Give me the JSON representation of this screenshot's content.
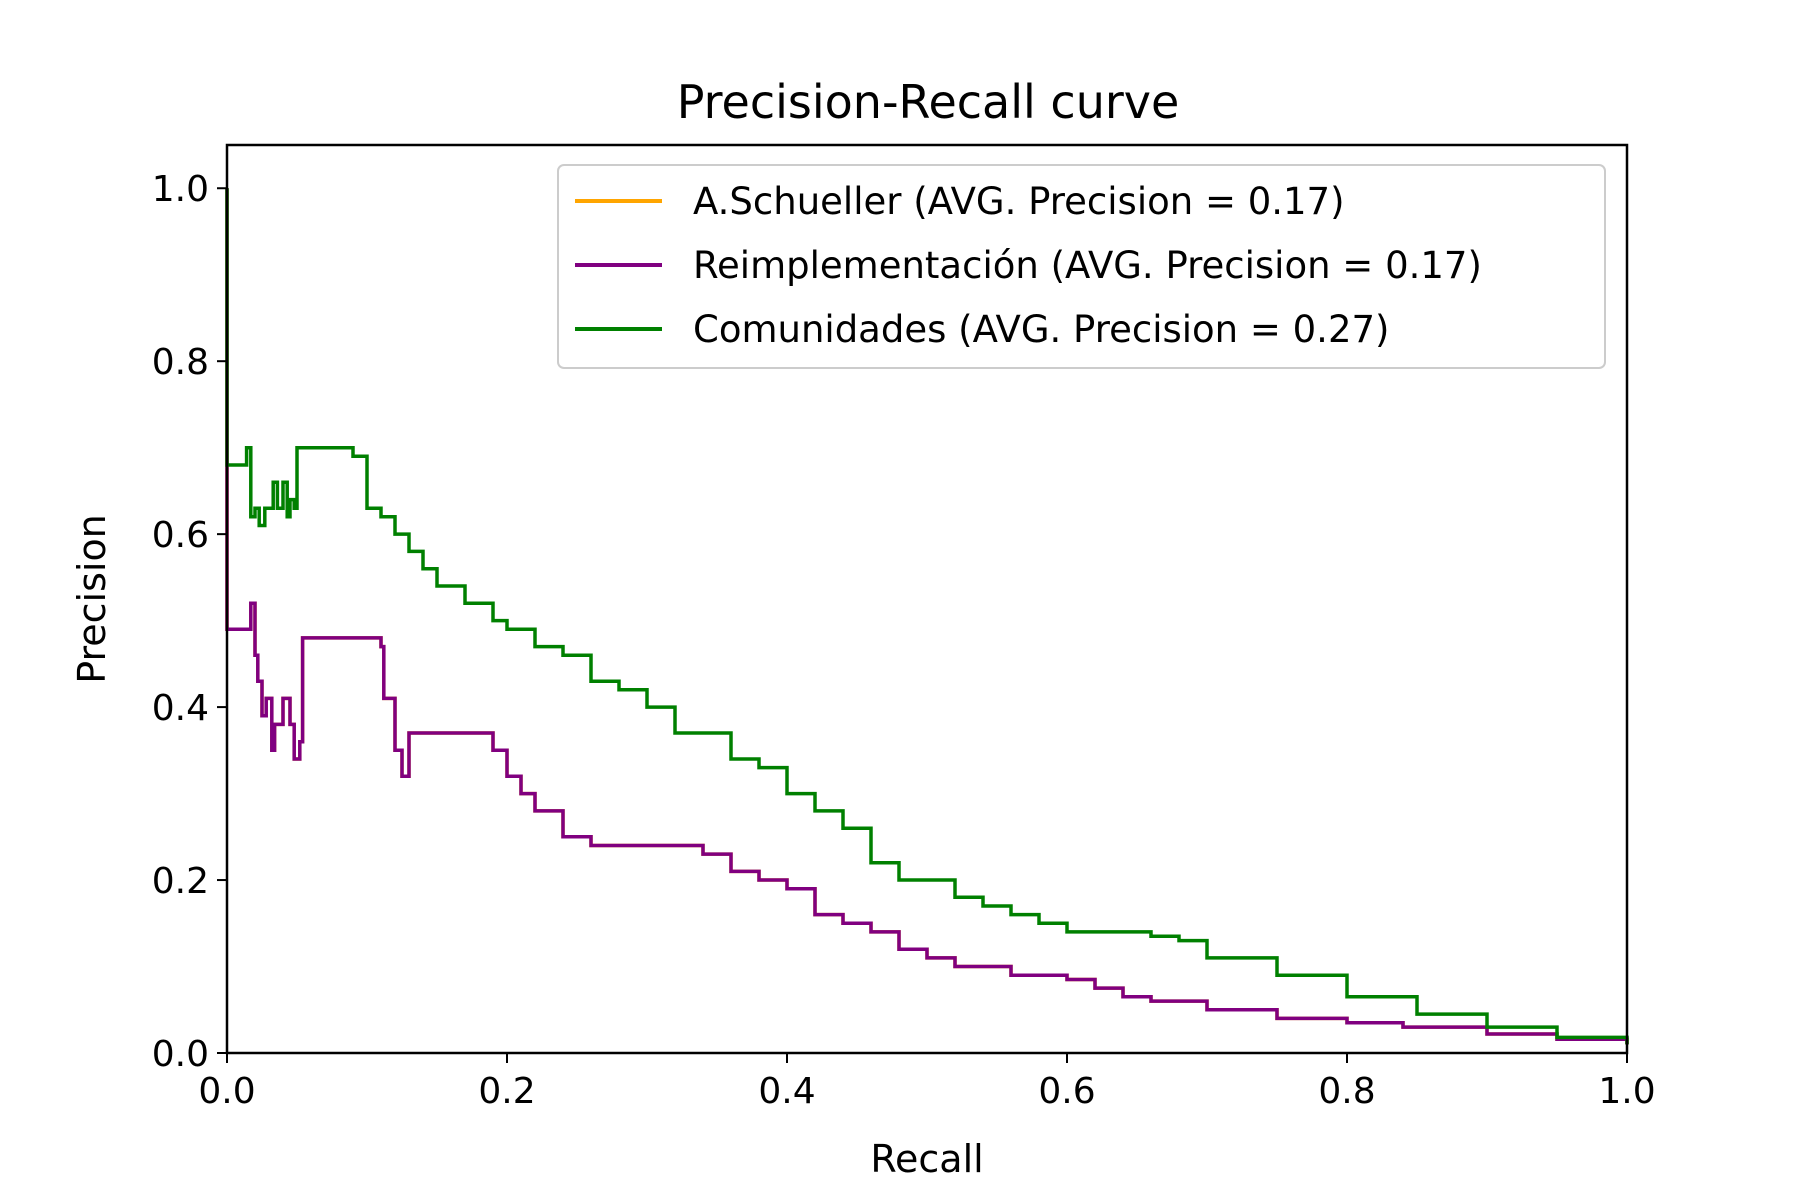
{
  "chart_data": {
    "type": "line",
    "title": "Precision-Recall curve",
    "xlabel": "Recall",
    "ylabel": "Precision",
    "xlim": [
      0.0,
      1.0
    ],
    "ylim": [
      0.0,
      1.05
    ],
    "xticks": [
      "0.0",
      "0.2",
      "0.4",
      "0.6",
      "0.8",
      "1.0"
    ],
    "yticks": [
      "0.0",
      "0.2",
      "0.4",
      "0.6",
      "0.8",
      "1.0"
    ],
    "grid": false,
    "legend_position": "top-right",
    "series": [
      {
        "name": "A.Schueller (AVG. Precision = 0.17)",
        "color": "#ffa500",
        "x": [
          0.0,
          0.0,
          0.005,
          0.01,
          0.015,
          0.017,
          0.02,
          0.022,
          0.025,
          0.028,
          0.032,
          0.034,
          0.037,
          0.04,
          0.045,
          0.048,
          0.052,
          0.054,
          0.056,
          0.1,
          0.11,
          0.112,
          0.12,
          0.125,
          0.13,
          0.14,
          0.17,
          0.18,
          0.19,
          0.2,
          0.21,
          0.22,
          0.24,
          0.26,
          0.28,
          0.3,
          0.32,
          0.34,
          0.36,
          0.38,
          0.4,
          0.42,
          0.44,
          0.46,
          0.48,
          0.5,
          0.52,
          0.56,
          0.58,
          0.6,
          0.62,
          0.64,
          0.66,
          0.7,
          0.75,
          0.8,
          0.84,
          0.9,
          0.95,
          1.0
        ],
        "y": [
          1.0,
          0.49,
          0.49,
          0.49,
          0.49,
          0.52,
          0.46,
          0.43,
          0.39,
          0.41,
          0.35,
          0.38,
          0.38,
          0.41,
          0.38,
          0.34,
          0.36,
          0.48,
          0.48,
          0.48,
          0.47,
          0.41,
          0.35,
          0.32,
          0.37,
          0.37,
          0.37,
          0.37,
          0.35,
          0.32,
          0.3,
          0.28,
          0.25,
          0.24,
          0.24,
          0.24,
          0.24,
          0.23,
          0.21,
          0.2,
          0.19,
          0.16,
          0.15,
          0.14,
          0.12,
          0.11,
          0.1,
          0.09,
          0.09,
          0.085,
          0.075,
          0.065,
          0.06,
          0.05,
          0.04,
          0.035,
          0.03,
          0.022,
          0.016,
          0.01
        ]
      },
      {
        "name": "Reimplementación (AVG. Precision = 0.17)",
        "color": "#800080",
        "x": [
          0.0,
          0.0,
          0.005,
          0.01,
          0.015,
          0.017,
          0.02,
          0.022,
          0.025,
          0.028,
          0.032,
          0.034,
          0.037,
          0.04,
          0.045,
          0.048,
          0.052,
          0.054,
          0.056,
          0.1,
          0.11,
          0.112,
          0.12,
          0.125,
          0.13,
          0.14,
          0.17,
          0.18,
          0.19,
          0.2,
          0.21,
          0.22,
          0.24,
          0.26,
          0.28,
          0.3,
          0.32,
          0.34,
          0.36,
          0.38,
          0.4,
          0.42,
          0.44,
          0.46,
          0.48,
          0.5,
          0.52,
          0.56,
          0.58,
          0.6,
          0.62,
          0.64,
          0.66,
          0.7,
          0.75,
          0.8,
          0.84,
          0.9,
          0.95,
          1.0
        ],
        "y": [
          1.0,
          0.49,
          0.49,
          0.49,
          0.49,
          0.52,
          0.46,
          0.43,
          0.39,
          0.41,
          0.35,
          0.38,
          0.38,
          0.41,
          0.38,
          0.34,
          0.36,
          0.48,
          0.48,
          0.48,
          0.47,
          0.41,
          0.35,
          0.32,
          0.37,
          0.37,
          0.37,
          0.37,
          0.35,
          0.32,
          0.3,
          0.28,
          0.25,
          0.24,
          0.24,
          0.24,
          0.24,
          0.23,
          0.21,
          0.2,
          0.19,
          0.16,
          0.15,
          0.14,
          0.12,
          0.11,
          0.1,
          0.09,
          0.09,
          0.085,
          0.075,
          0.065,
          0.06,
          0.05,
          0.04,
          0.035,
          0.03,
          0.022,
          0.016,
          0.01
        ]
      },
      {
        "name": "Comunidades (AVG. Precision = 0.27)",
        "color": "#008000",
        "x": [
          0.0,
          0.0,
          0.005,
          0.012,
          0.014,
          0.017,
          0.02,
          0.023,
          0.027,
          0.03,
          0.033,
          0.036,
          0.04,
          0.043,
          0.045,
          0.048,
          0.05,
          0.07,
          0.08,
          0.09,
          0.1,
          0.11,
          0.12,
          0.13,
          0.14,
          0.15,
          0.17,
          0.19,
          0.2,
          0.22,
          0.24,
          0.26,
          0.28,
          0.3,
          0.32,
          0.34,
          0.36,
          0.38,
          0.4,
          0.42,
          0.44,
          0.46,
          0.48,
          0.5,
          0.52,
          0.54,
          0.56,
          0.58,
          0.6,
          0.62,
          0.64,
          0.66,
          0.68,
          0.7,
          0.75,
          0.8,
          0.85,
          0.9,
          0.95,
          1.0
        ],
        "y": [
          1.0,
          0.68,
          0.68,
          0.68,
          0.7,
          0.62,
          0.63,
          0.61,
          0.63,
          0.63,
          0.66,
          0.63,
          0.66,
          0.62,
          0.64,
          0.63,
          0.7,
          0.7,
          0.7,
          0.69,
          0.63,
          0.62,
          0.6,
          0.58,
          0.56,
          0.54,
          0.52,
          0.5,
          0.49,
          0.47,
          0.46,
          0.43,
          0.42,
          0.4,
          0.37,
          0.37,
          0.34,
          0.33,
          0.3,
          0.28,
          0.26,
          0.22,
          0.2,
          0.2,
          0.18,
          0.17,
          0.16,
          0.15,
          0.14,
          0.14,
          0.14,
          0.135,
          0.13,
          0.11,
          0.09,
          0.065,
          0.045,
          0.03,
          0.018,
          0.01
        ]
      }
    ]
  }
}
